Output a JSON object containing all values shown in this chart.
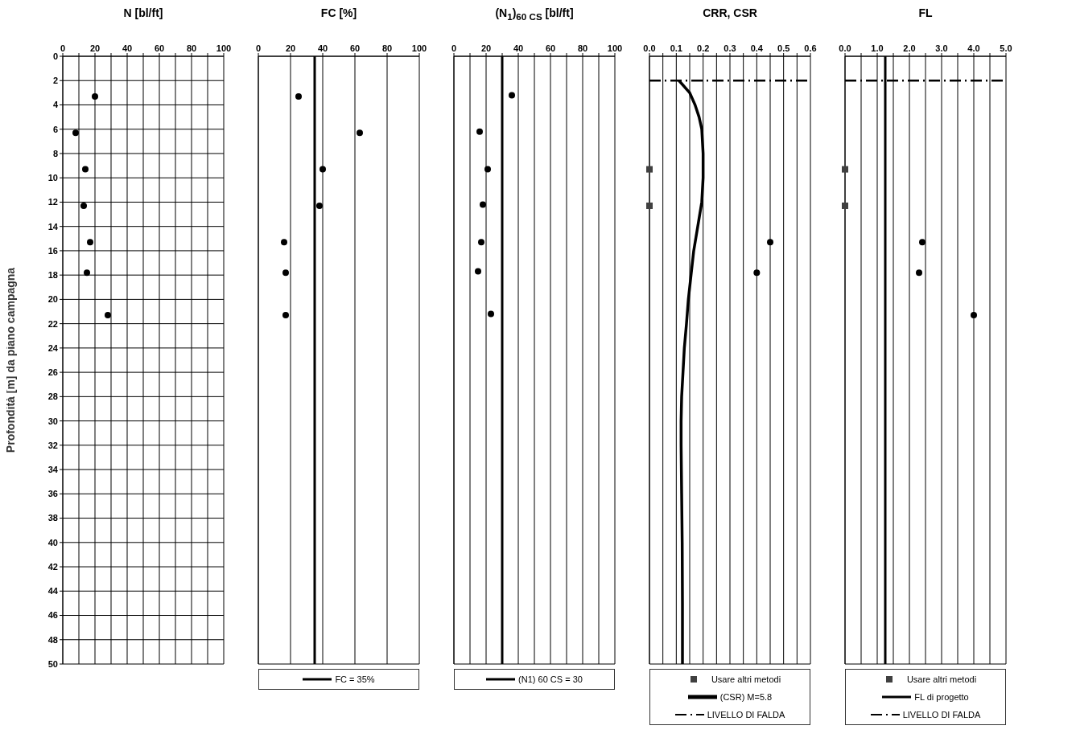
{
  "chart_data": [
    {
      "type": "scatter",
      "title": "N [bl/ft]",
      "ylabel": "Profondità [m] da piano campagna",
      "xlim": [
        0,
        100
      ],
      "xticks": [
        0,
        {
          "value": 10,
          "label": null
        },
        20,
        {
          "value": 30,
          "label": null
        },
        40,
        {
          "value": 50,
          "label": null
        },
        60,
        {
          "value": 70,
          "label": null
        },
        80,
        {
          "value": 90,
          "label": null
        },
        100
      ],
      "ylim": [
        50,
        0
      ],
      "yticks": [
        0,
        2,
        4,
        6,
        8,
        10,
        12,
        14,
        16,
        18,
        20,
        22,
        24,
        26,
        28,
        30,
        32,
        34,
        36,
        38,
        40,
        42,
        44,
        46,
        48,
        50
      ],
      "grid": true,
      "series": [
        {
          "color": "#000000",
          "marker": "circle",
          "x": [
            20,
            8,
            14,
            13,
            17,
            15,
            28
          ],
          "values": [
            3.3,
            6.3,
            9.3,
            12.3,
            15.3,
            17.8,
            21.3
          ]
        }
      ]
    },
    {
      "type": "scatter",
      "title": "FC [%]",
      "xlim": [
        0,
        100
      ],
      "xticks": [
        0,
        20,
        40,
        60,
        80,
        100
      ],
      "ylim": [
        50,
        0
      ],
      "yticks": [
        0,
        2,
        4,
        6,
        8,
        10,
        12,
        14,
        16,
        18,
        20,
        22,
        24,
        26,
        28,
        30,
        32,
        34,
        36,
        38,
        40,
        42,
        44,
        46,
        48,
        50
      ],
      "grid": true,
      "tick_labels": "x",
      "legend": "bottom",
      "series": [
        {
          "color": "#000000",
          "marker": "circle",
          "x": [
            25,
            63,
            40,
            38,
            16,
            17,
            17
          ],
          "values": [
            3.3,
            6.3,
            9.3,
            12.3,
            15.3,
            17.8,
            21.3
          ]
        }
      ],
      "ref_lines": [
        {
          "axis": "x",
          "value": 35,
          "label": "FC = 35%",
          "color": "#000000",
          "line_style": "solid"
        }
      ]
    },
    {
      "type": "scatter",
      "title": "(N$_{1}$)$_{60 CS}$ [bl/ft]",
      "xlim": [
        0,
        100
      ],
      "xticks": [
        0,
        {
          "value": 10,
          "label": null
        },
        20,
        {
          "value": 30,
          "label": null
        },
        40,
        {
          "value": 50,
          "label": null
        },
        60,
        {
          "value": 70,
          "label": null
        },
        80,
        {
          "value": 90,
          "label": null
        },
        100
      ],
      "ylim": [
        50,
        0
      ],
      "yticks": [
        0,
        2,
        4,
        6,
        8,
        10,
        12,
        14,
        16,
        18,
        20,
        22,
        24,
        26,
        28,
        30,
        32,
        34,
        36,
        38,
        40,
        42,
        44,
        46,
        48,
        50
      ],
      "grid": true,
      "tick_labels": "x",
      "legend": "bottom",
      "series": [
        {
          "color": "#000000",
          "marker": "circle",
          "x": [
            36,
            16,
            21,
            18,
            17,
            15,
            23
          ],
          "values": [
            3.2,
            6.2,
            9.3,
            12.2,
            15.3,
            17.7,
            21.2
          ]
        }
      ],
      "ref_lines": [
        {
          "axis": "x",
          "value": 30,
          "label": "(N1) 60 CS = 30",
          "color": "#000000",
          "line_style": "solid"
        }
      ]
    },
    {
      "type": "scatter",
      "title": "CRR, CSR",
      "xlim": [
        0,
        0.6
      ],
      "xticks": [
        {
          "value": 0,
          "label": "0.0"
        },
        {
          "value": 0.05,
          "label": null
        },
        0.1,
        {
          "value": 0.15,
          "label": null
        },
        0.2,
        {
          "value": 0.25,
          "label": null
        },
        0.3,
        {
          "value": 0.35,
          "label": null
        },
        0.4,
        {
          "value": 0.45,
          "label": null
        },
        0.5,
        {
          "value": 0.55,
          "label": null
        },
        0.6
      ],
      "ylim": [
        50,
        0
      ],
      "yticks": [
        0,
        2,
        4,
        6,
        8,
        10,
        12,
        14,
        16,
        18,
        20,
        22,
        24,
        26,
        28,
        30,
        32,
        34,
        36,
        38,
        40,
        42,
        44,
        46,
        48,
        50
      ],
      "grid": true,
      "tick_labels": "x",
      "legend": "bottom",
      "series": [
        {
          "name": "Usare altri metodi",
          "color": "#404040",
          "marker": "square",
          "x": [
            0,
            0
          ],
          "values": [
            9.3,
            12.3
          ]
        },
        {
          "color": "#000000",
          "marker": "circle",
          "x": [
            0.45,
            0.4
          ],
          "values": [
            15.3,
            17.8
          ]
        },
        {
          "name": "(CSR)  M=5.8",
          "type": "line",
          "color": "#000000",
          "marker": "none",
          "x": [
            0.11,
            0.15,
            0.17,
            0.185,
            0.195,
            0.2,
            0.2,
            0.195,
            0.18,
            0.165,
            0.155,
            0.145,
            0.138,
            0.13,
            0.125,
            0.12,
            0.118,
            0.118,
            0.12,
            0.122,
            0.123,
            0.123
          ],
          "values": [
            2,
            3,
            4,
            5,
            6,
            8,
            10,
            12,
            14,
            16,
            18,
            20,
            22,
            24,
            26,
            28,
            30,
            32,
            36,
            40,
            45,
            50
          ]
        }
      ],
      "ref_lines": [
        {
          "axis": "y",
          "value": 2,
          "label": "LIVELLO DI FALDA",
          "color": "#000000",
          "line_style": "dashed"
        }
      ]
    },
    {
      "type": "scatter",
      "title": "FL",
      "xlim": [
        0,
        5
      ],
      "xticks": [
        {
          "value": 0,
          "label": "0.0"
        },
        {
          "value": 0.5,
          "label": null
        },
        {
          "value": 1,
          "label": "1.0"
        },
        {
          "value": 1.5,
          "label": null
        },
        {
          "value": 2,
          "label": "2.0"
        },
        {
          "value": 2.5,
          "label": null
        },
        {
          "value": 3,
          "label": "3.0"
        },
        {
          "value": 3.5,
          "label": null
        },
        {
          "value": 4,
          "label": "4.0"
        },
        {
          "value": 4.5,
          "label": null
        },
        {
          "value": 5,
          "label": "5.0"
        }
      ],
      "ylim": [
        50,
        0
      ],
      "yticks": [
        0,
        2,
        4,
        6,
        8,
        10,
        12,
        14,
        16,
        18,
        20,
        22,
        24,
        26,
        28,
        30,
        32,
        34,
        36,
        38,
        40,
        42,
        44,
        46,
        48,
        50
      ],
      "grid": true,
      "tick_labels": "x",
      "legend": "bottom",
      "series": [
        {
          "name": "Usare altri metodi",
          "color": "#404040",
          "marker": "square",
          "x": [
            0,
            0
          ],
          "values": [
            9.3,
            12.3
          ]
        },
        {
          "color": "#000000",
          "marker": "circle",
          "x": [
            2.4,
            2.3,
            4.0
          ],
          "values": [
            15.3,
            17.8,
            21.3
          ]
        }
      ],
      "ref_lines": [
        {
          "axis": "x",
          "value": 1.25,
          "label": "FL di progetto",
          "color": "#000000",
          "line_style": "solid"
        },
        {
          "axis": "y",
          "value": 2,
          "label": "LIVELLO DI FALDA",
          "color": "#000000",
          "line_style": "dashed"
        }
      ]
    }
  ]
}
